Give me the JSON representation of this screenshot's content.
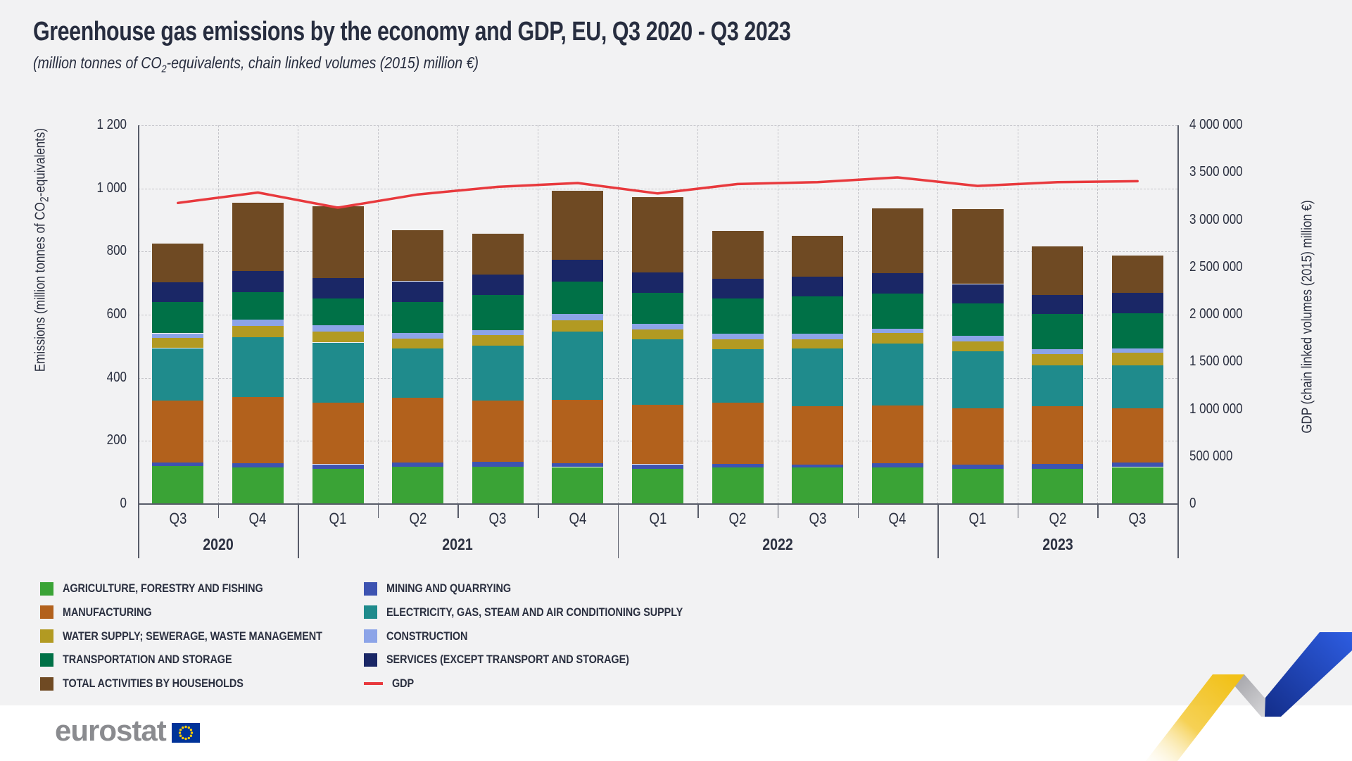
{
  "title": "Greenhouse gas emissions by the economy and GDP, EU, Q3 2020 - Q3 2023",
  "subtitle": {
    "pre": "(million tonnes of CO",
    "sub": "2",
    "post": "-equivalents, chain linked volumes (2015) million €)"
  },
  "left_axis": {
    "title_pre": "Emissions (million tonnes of CO",
    "title_sub": "2",
    "title_post": "-equivalents)",
    "tick_labels": [
      "1 200",
      "1 000",
      "800",
      "600",
      "400",
      "200",
      "0"
    ]
  },
  "right_axis": {
    "title": "GDP (chain linked volumes (2015) million €)",
    "tick_labels": [
      "4 000 000",
      "3 500 000",
      "3 000 000",
      "2 500 000",
      "2 000 000",
      "1 500 000",
      "1 000 000",
      "500 000",
      "0"
    ]
  },
  "chart_data": {
    "type": "stacked-bar-with-line",
    "title": "Greenhouse gas emissions by the economy and GDP, EU, Q3 2020 - Q3 2023",
    "categories": [
      "Q3 2020",
      "Q4 2020",
      "Q1 2021",
      "Q2 2021",
      "Q3 2021",
      "Q4 2021",
      "Q1 2022",
      "Q2 2022",
      "Q3 2022",
      "Q4 2022",
      "Q1 2023",
      "Q2 2023",
      "Q3 2023"
    ],
    "x_quarters": [
      "Q3",
      "Q4",
      "Q1",
      "Q2",
      "Q3",
      "Q4",
      "Q1",
      "Q2",
      "Q3",
      "Q4",
      "Q1",
      "Q2",
      "Q3"
    ],
    "year_groups": [
      {
        "label": "2020",
        "count": 2
      },
      {
        "label": "2021",
        "count": 4
      },
      {
        "label": "2022",
        "count": 4
      },
      {
        "label": "2023",
        "count": 3
      }
    ],
    "emissions_axis": {
      "min": 0,
      "max": 1200,
      "step": 200
    },
    "gdp_axis": {
      "min": 0,
      "max": 4000000,
      "step": 500000
    },
    "grid": true,
    "series": [
      {
        "id": "agriculture",
        "name": "AGRICULTURE, FORESTRY AND FISHING",
        "color": "#3aa336",
        "values": [
          121,
          115,
          112,
          119,
          119,
          117,
          112,
          115,
          115,
          115,
          112,
          112,
          117
        ]
      },
      {
        "id": "mining",
        "name": "MINING AND QUARRYING",
        "color": "#3d53b1",
        "values": [
          11,
          15,
          14,
          13,
          14,
          13,
          14,
          12,
          9,
          15,
          12,
          15,
          15
        ]
      },
      {
        "id": "manufacturing",
        "name": "MANUFACTURING",
        "color": "#b2611c",
        "values": [
          196,
          209,
          195,
          205,
          195,
          200,
          189,
          195,
          187,
          183,
          179,
          184,
          172
        ]
      },
      {
        "id": "electricity",
        "name": "ELECTRICITY, GAS, STEAM AND AIR CONDITIONING SUPPLY",
        "color": "#1f8b8c",
        "values": [
          166,
          189,
          191,
          156,
          173,
          217,
          206,
          169,
          182,
          195,
          181,
          128,
          135
        ]
      },
      {
        "id": "water-supply",
        "name": "WATER SUPPLY; SEWERAGE, WASTE MANAGEMENT",
        "color": "#b29a22",
        "values": [
          32,
          36,
          34,
          31,
          34,
          35,
          33,
          30,
          28,
          34,
          31,
          37,
          40
        ]
      },
      {
        "id": "construction",
        "name": "CONSTRUCTION",
        "color": "#8ca4e8",
        "values": [
          15,
          20,
          20,
          18,
          16,
          20,
          17,
          19,
          18,
          14,
          19,
          15,
          14
        ]
      },
      {
        "id": "transportation",
        "name": "TRANSPORTATION AND STORAGE",
        "color": "#007147",
        "values": [
          99,
          88,
          86,
          99,
          112,
          102,
          98,
          112,
          119,
          111,
          101,
          112,
          112
        ]
      },
      {
        "id": "services",
        "name": "SERVICES (EXCEPT TRANSPORT AND STORAGE)",
        "color": "#1a2766",
        "values": [
          63,
          67,
          63,
          65,
          65,
          69,
          64,
          62,
          63,
          64,
          62,
          60,
          65
        ]
      },
      {
        "id": "households",
        "name": "TOTAL ACTIVITIES BY HOUSEHOLDS",
        "color": "#6f4a23",
        "values": [
          122,
          216,
          229,
          161,
          128,
          220,
          239,
          152,
          128,
          206,
          238,
          154,
          117
        ]
      }
    ],
    "gdp_line": {
      "id": "gdp",
      "name": "GDP",
      "color": "#e8393d",
      "values": [
        3180000,
        3290000,
        3130000,
        3270000,
        3350000,
        3390000,
        3280000,
        3380000,
        3400000,
        3450000,
        3360000,
        3400000,
        3410000
      ]
    }
  },
  "legend": {
    "left_column_series": [
      0,
      2,
      4,
      6,
      8
    ],
    "right_column_series": [
      1,
      3,
      5,
      7
    ],
    "right_column_has_gdp": true
  },
  "footer": {
    "logo_text": "eurostat"
  }
}
